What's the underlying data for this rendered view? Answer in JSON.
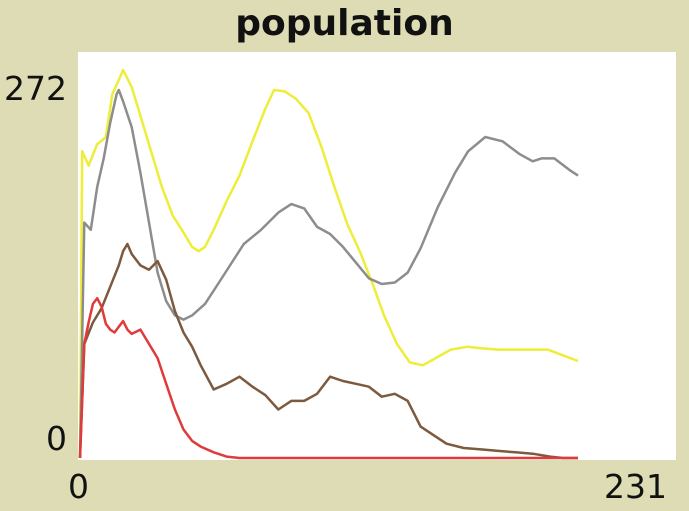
{
  "chart_data": {
    "type": "line",
    "title": "population",
    "xlabel": "",
    "ylabel": "",
    "xlim": [
      0,
      231
    ],
    "ylim": [
      0,
      272
    ],
    "x_tick_labels": [
      "0",
      "231"
    ],
    "y_tick_labels": [
      "0",
      "272"
    ],
    "grid": false,
    "legend": "none",
    "series": [
      {
        "color": "#eded3a",
        "points": [
          [
            0,
            0
          ],
          [
            1,
            215
          ],
          [
            4,
            205
          ],
          [
            8,
            220
          ],
          [
            12,
            225
          ],
          [
            15,
            255
          ],
          [
            18,
            265
          ],
          [
            20,
            272
          ],
          [
            24,
            260
          ],
          [
            28,
            240
          ],
          [
            33,
            215
          ],
          [
            38,
            190
          ],
          [
            43,
            170
          ],
          [
            48,
            158
          ],
          [
            52,
            148
          ],
          [
            55,
            145
          ],
          [
            58,
            148
          ],
          [
            62,
            160
          ],
          [
            68,
            180
          ],
          [
            74,
            198
          ],
          [
            80,
            222
          ],
          [
            86,
            245
          ],
          [
            90,
            258
          ],
          [
            95,
            257
          ],
          [
            100,
            252
          ],
          [
            106,
            242
          ],
          [
            112,
            218
          ],
          [
            118,
            190
          ],
          [
            124,
            164
          ],
          [
            130,
            144
          ],
          [
            136,
            121
          ],
          [
            141,
            100
          ],
          [
            147,
            80
          ],
          [
            153,
            67
          ],
          [
            159,
            65
          ],
          [
            165,
            70
          ],
          [
            172,
            76
          ],
          [
            180,
            78
          ],
          [
            186,
            77
          ],
          [
            194,
            76
          ],
          [
            202,
            76
          ],
          [
            210,
            76
          ],
          [
            217,
            76
          ],
          [
            224,
            72
          ],
          [
            231,
            68
          ]
        ]
      },
      {
        "color": "#8d8d8d",
        "points": [
          [
            0,
            0
          ],
          [
            2,
            165
          ],
          [
            5,
            160
          ],
          [
            8,
            190
          ],
          [
            11,
            210
          ],
          [
            14,
            235
          ],
          [
            17,
            255
          ],
          [
            18,
            258
          ],
          [
            20,
            250
          ],
          [
            24,
            232
          ],
          [
            28,
            200
          ],
          [
            32,
            165
          ],
          [
            36,
            130
          ],
          [
            40,
            110
          ],
          [
            44,
            100
          ],
          [
            48,
            97
          ],
          [
            52,
            100
          ],
          [
            58,
            108
          ],
          [
            64,
            122
          ],
          [
            70,
            136
          ],
          [
            76,
            150
          ],
          [
            84,
            160
          ],
          [
            92,
            172
          ],
          [
            98,
            178
          ],
          [
            104,
            175
          ],
          [
            110,
            162
          ],
          [
            116,
            157
          ],
          [
            122,
            148
          ],
          [
            128,
            137
          ],
          [
            134,
            126
          ],
          [
            140,
            122
          ],
          [
            146,
            123
          ],
          [
            152,
            130
          ],
          [
            158,
            147
          ],
          [
            166,
            176
          ],
          [
            174,
            200
          ],
          [
            180,
            215
          ],
          [
            188,
            225
          ],
          [
            196,
            222
          ],
          [
            204,
            213
          ],
          [
            210,
            208
          ],
          [
            214,
            210
          ],
          [
            220,
            210
          ],
          [
            227,
            202
          ],
          [
            231,
            198
          ]
        ]
      },
      {
        "color": "#7d5a3e",
        "points": [
          [
            0,
            0
          ],
          [
            2,
            80
          ],
          [
            6,
            95
          ],
          [
            10,
            105
          ],
          [
            14,
            120
          ],
          [
            18,
            135
          ],
          [
            20,
            145
          ],
          [
            22,
            150
          ],
          [
            24,
            143
          ],
          [
            28,
            135
          ],
          [
            32,
            132
          ],
          [
            36,
            138
          ],
          [
            40,
            125
          ],
          [
            44,
            103
          ],
          [
            48,
            88
          ],
          [
            52,
            78
          ],
          [
            56,
            65
          ],
          [
            62,
            48
          ],
          [
            68,
            52
          ],
          [
            74,
            57
          ],
          [
            80,
            50
          ],
          [
            86,
            44
          ],
          [
            92,
            34
          ],
          [
            98,
            40
          ],
          [
            104,
            40
          ],
          [
            110,
            45
          ],
          [
            116,
            57
          ],
          [
            122,
            54
          ],
          [
            128,
            52
          ],
          [
            134,
            50
          ],
          [
            140,
            43
          ],
          [
            146,
            45
          ],
          [
            152,
            40
          ],
          [
            158,
            22
          ],
          [
            164,
            16
          ],
          [
            170,
            10
          ],
          [
            178,
            7
          ],
          [
            186,
            6
          ],
          [
            194,
            5
          ],
          [
            202,
            4
          ],
          [
            210,
            3
          ],
          [
            218,
            1
          ],
          [
            224,
            0
          ],
          [
            231,
            0
          ]
        ]
      },
      {
        "color": "#e03a3a",
        "points": [
          [
            0,
            0
          ],
          [
            2,
            80
          ],
          [
            4,
            95
          ],
          [
            6,
            108
          ],
          [
            8,
            112
          ],
          [
            10,
            106
          ],
          [
            12,
            94
          ],
          [
            14,
            90
          ],
          [
            16,
            88
          ],
          [
            18,
            92
          ],
          [
            20,
            96
          ],
          [
            22,
            90
          ],
          [
            24,
            87
          ],
          [
            28,
            90
          ],
          [
            32,
            80
          ],
          [
            36,
            70
          ],
          [
            40,
            52
          ],
          [
            44,
            34
          ],
          [
            48,
            20
          ],
          [
            52,
            12
          ],
          [
            56,
            8
          ],
          [
            62,
            4
          ],
          [
            68,
            1
          ],
          [
            74,
            0
          ],
          [
            90,
            0
          ],
          [
            120,
            0
          ],
          [
            160,
            0
          ],
          [
            200,
            0
          ],
          [
            231,
            0
          ]
        ]
      }
    ]
  }
}
